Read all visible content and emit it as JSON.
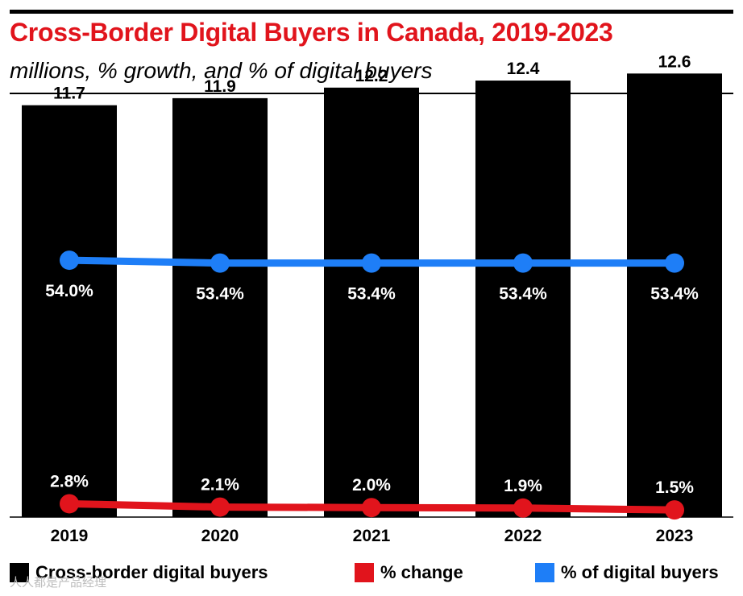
{
  "chart_data": {
    "type": "bar",
    "title": "Cross-Border Digital Buyers in Canada, 2019-2023",
    "subtitle": "millions, % growth, and % of digital buyers",
    "categories": [
      "2019",
      "2020",
      "2021",
      "2022",
      "2023"
    ],
    "bar_ylim": [
      0,
      14.3
    ],
    "pct_ylim": [
      0,
      85
    ],
    "series": [
      {
        "name": "Cross-border digital buyers",
        "kind": "bar",
        "color": "#000000",
        "values": [
          11.7,
          11.9,
          12.2,
          12.4,
          12.6
        ],
        "labels": [
          "11.7",
          "11.9",
          "12.2",
          "12.4",
          "12.6"
        ]
      },
      {
        "name": "% change",
        "kind": "line",
        "color": "#e1141c",
        "values": [
          2.8,
          2.1,
          2.0,
          1.9,
          1.5
        ],
        "labels": [
          "2.8%",
          "2.1%",
          "2.0%",
          "1.9%",
          "1.5%"
        ]
      },
      {
        "name": "% of digital buyers",
        "kind": "line",
        "color": "#1e7ef7",
        "values": [
          54.0,
          53.4,
          53.4,
          53.4,
          53.4
        ],
        "labels": [
          "54.0%",
          "53.4%",
          "53.4%",
          "53.4%",
          "53.4%"
        ]
      }
    ]
  },
  "legend": [
    {
      "label": "Cross-border digital buyers",
      "color": "#000000"
    },
    {
      "label": "% change",
      "color": "#e1141c"
    },
    {
      "label": "% of digital buyers",
      "color": "#1e7ef7"
    }
  ],
  "watermark": "人人都是产品经理"
}
